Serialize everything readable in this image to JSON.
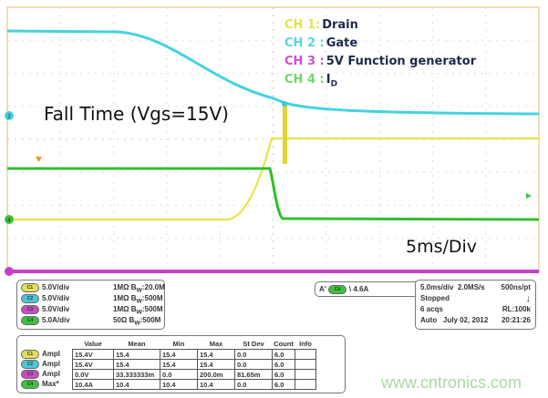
{
  "legend": [
    {
      "ch": "CH 1:",
      "label": "Drain",
      "color": "#e6e24a"
    },
    {
      "ch": "CH 2 :",
      "label": "Gate",
      "color": "#5ed3e0"
    },
    {
      "ch": "CH 3 :",
      "label": "5V Function generator",
      "color": "#d04fc9"
    },
    {
      "ch": "CH 4 :",
      "label": "I",
      "sub": "D",
      "color": "#6fd86a"
    }
  ],
  "annotation_title": "Fall Time (Vgs=15V)",
  "annotation_timebase": "5ms/Div",
  "channels": [
    {
      "tag": "C1",
      "scale": "5.0V/div",
      "imp": "1MΩ",
      "bw": "B",
      "bw_sub": "W",
      "bw_val": ":20.0M",
      "color": "#e3df5a"
    },
    {
      "tag": "C2",
      "scale": "5.0V/div",
      "imp": "1MΩ",
      "bw": "B",
      "bw_sub": "W",
      "bw_val": ":500M",
      "color": "#4ec6d6"
    },
    {
      "tag": "C3",
      "scale": "5.0V/div",
      "imp": "1MΩ",
      "bw": "B",
      "bw_sub": "W",
      "bw_val": ":500M",
      "color": "#c84cc4"
    },
    {
      "tag": "C4",
      "scale": "5.0A/div",
      "imp": "50Ω",
      "bw": "B",
      "bw_sub": "W",
      "bw_val": ":500M",
      "color": "#3fc13f"
    }
  ],
  "measurements": {
    "headers": [
      "Value",
      "Mean",
      "Min",
      "Max",
      "St Dev",
      "Count",
      "Info"
    ],
    "rows": [
      {
        "tag": "C1",
        "label": "Ampl",
        "values": [
          "15.4V",
          "15.4",
          "15.4",
          "15.4",
          "0.0",
          "6.0",
          ""
        ]
      },
      {
        "tag": "C2",
        "label": "Ampl",
        "values": [
          "15.4V",
          "15.4",
          "15.4",
          "15.4",
          "0.0",
          "6.0",
          ""
        ]
      },
      {
        "tag": "C3",
        "label": "Ampl",
        "values": [
          "0.0V",
          "33.333333m",
          "0.0",
          "200.0m",
          "81.65m",
          "6.0",
          ""
        ]
      },
      {
        "tag": "C4",
        "label": "Max*",
        "values": [
          "10.4A",
          "10.4",
          "10.4",
          "10.4",
          "0.0",
          "6.0",
          ""
        ]
      }
    ]
  },
  "trigger": {
    "source": "A'",
    "tag": "C4",
    "slope": "\\",
    "level": "4.6A"
  },
  "acquisition": {
    "timebase": "5.0ms/div",
    "sample_rate": "2.0MS/s",
    "resolution": "500ns/pt",
    "state": "Stopped",
    "acqs": "6 acqs",
    "record_length": "RL:100k",
    "mode": "Auto",
    "date": "July 02, 2012",
    "time": "20:21:26"
  },
  "markers": {
    "ch2": "2",
    "ch4": "4",
    "ch3": "3"
  },
  "watermark": "www.cntronics.com"
}
